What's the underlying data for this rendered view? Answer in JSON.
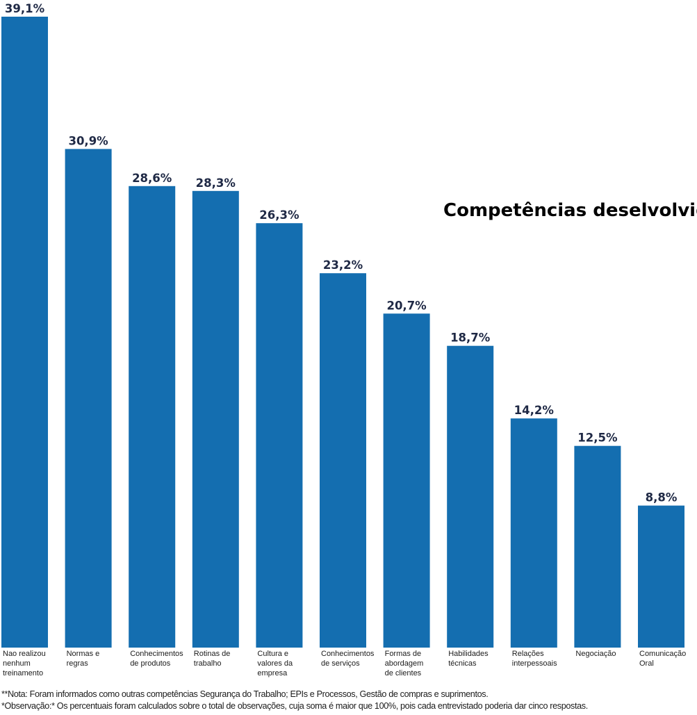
{
  "chart_data": {
    "type": "bar",
    "title": "Competências deselvolvidas",
    "categories": [
      "Nao realizou nenhum treinamento",
      "Normas e regras",
      "Conhecimentos de produtos",
      "Rotinas de trabalho",
      "Cultura e valores da empresa",
      "Conhecimentos de serviços",
      "Formas de abordagem de clientes",
      "Habilidades técnicas",
      "Relações interpessoais",
      "Negociação",
      "Comunicação Oral"
    ],
    "category_lines": [
      [
        "Nao realizou",
        "nenhum",
        "treinamento"
      ],
      [
        "Normas e",
        "regras"
      ],
      [
        "Conhecimentos",
        "de produtos"
      ],
      [
        "Rotinas de",
        "trabalho"
      ],
      [
        "Cultura e",
        "valores da",
        "empresa"
      ],
      [
        "Conhecimentos",
        "de serviços"
      ],
      [
        "Formas de",
        "abordagem",
        "de clientes"
      ],
      [
        "Habilidades",
        "técnicas"
      ],
      [
        "Relações",
        "interpessoais"
      ],
      [
        "Negociação"
      ],
      [
        "Comunicação",
        "Oral"
      ]
    ],
    "values": [
      39.1,
      30.9,
      28.6,
      28.3,
      26.3,
      23.2,
      20.7,
      18.7,
      14.2,
      12.5,
      8.8
    ],
    "value_labels": [
      "39,1%",
      "30,9%",
      "28,6%",
      "28,3%",
      "26,3%",
      "23,2%",
      "20,7%",
      "18,7%",
      "14,2%",
      "12,5%",
      "8,8%"
    ],
    "xlabel": "",
    "ylabel": "",
    "ylim": [
      0,
      39.1
    ],
    "grid": false,
    "legend": "none",
    "bar_color": "#146eb0",
    "label_color": "#1f2945"
  },
  "footnotes": {
    "note": "**Nota: Foram informados como outras competências Segurança do Trabalho; EPIs e Processos, Gestão de compras e suprimentos.",
    "observation": "*Observação:* Os percentuais foram calculados sobre o total de observações, cuja soma é maior que 100%, pois cada entrevistado poderia dar cinco respostas."
  }
}
